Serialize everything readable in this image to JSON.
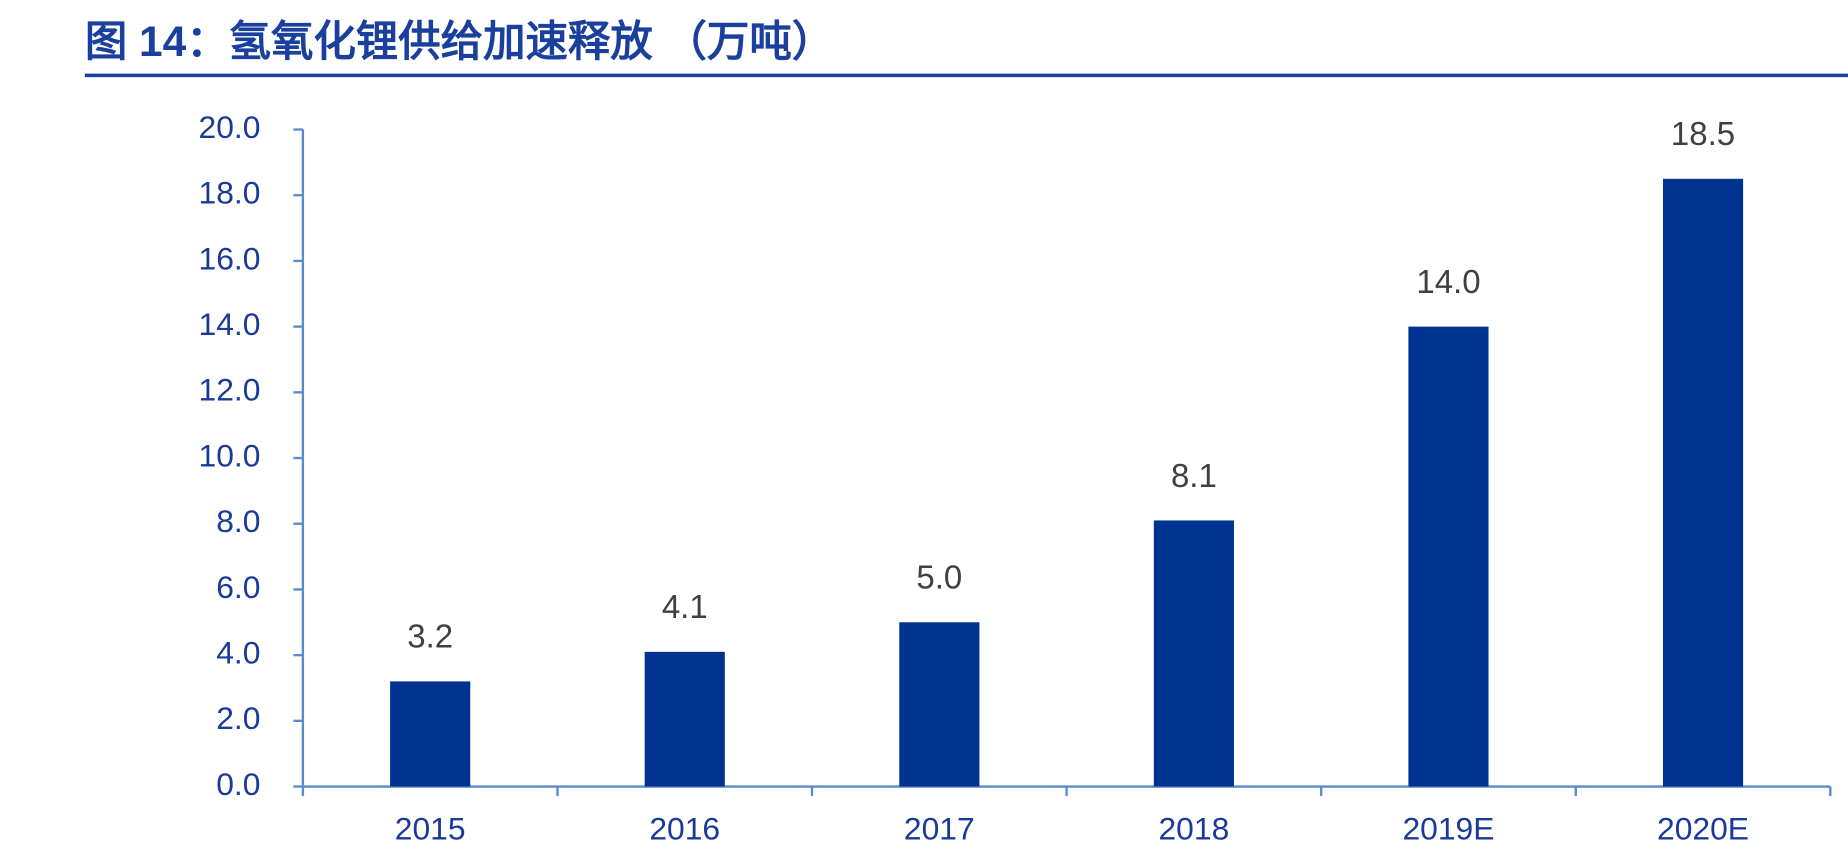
{
  "chart_data": {
    "type": "bar",
    "title": "图 14：氢氧化锂供给加速释放 （万吨）",
    "categories": [
      "2015",
      "2016",
      "2017",
      "2018",
      "2019E",
      "2020E"
    ],
    "values": [
      3.2,
      4.1,
      5.0,
      8.1,
      14.0,
      18.5
    ],
    "value_labels": [
      "3.2",
      "4.1",
      "5.0",
      "8.1",
      "14.0",
      "18.5"
    ],
    "color": "#00338f",
    "ylim": [
      0,
      20
    ],
    "yticks": [
      {
        "value": 0,
        "label": "0.0"
      },
      {
        "value": 2,
        "label": "2.0"
      },
      {
        "value": 4,
        "label": "4.0"
      },
      {
        "value": 6,
        "label": "6.0"
      },
      {
        "value": 8,
        "label": "8.0"
      },
      {
        "value": 10,
        "label": "10.0"
      },
      {
        "value": 12,
        "label": "12.0"
      },
      {
        "value": 14,
        "label": "14.0"
      },
      {
        "value": 16,
        "label": "16.0"
      },
      {
        "value": 18,
        "label": "18.0"
      },
      {
        "value": 20,
        "label": "20.0"
      }
    ],
    "grid": false
  }
}
